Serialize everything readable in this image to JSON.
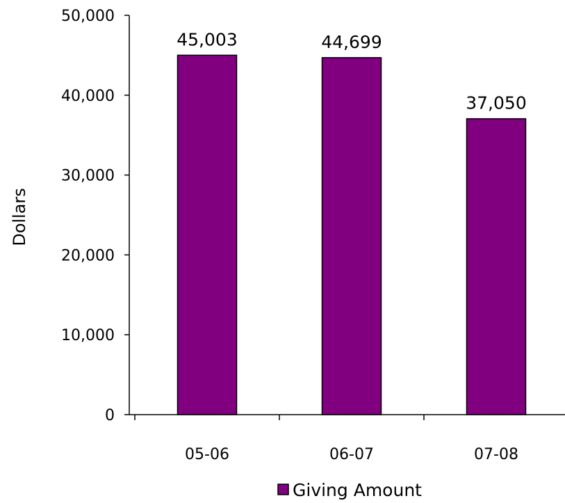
{
  "chart_data": {
    "type": "bar",
    "categories": [
      "05-06",
      "06-07",
      "07-08"
    ],
    "series": [
      {
        "name": "Giving Amount",
        "values": [
          45003,
          44699,
          37050
        ]
      }
    ],
    "data_labels": [
      "45,003",
      "44,699",
      "37,050"
    ],
    "ylabel": "Dollars",
    "xlabel": "",
    "ylim": [
      0,
      50000
    ],
    "y_ticks": [
      0,
      10000,
      20000,
      30000,
      40000,
      50000
    ],
    "y_tick_labels": [
      "0",
      "10,000",
      "20,000",
      "30,000",
      "40,000",
      "50,000"
    ],
    "grid": false,
    "legend": "bottom",
    "colors": {
      "bar": "#800080",
      "bar_stroke": "#000000",
      "axis": "#000000"
    }
  }
}
